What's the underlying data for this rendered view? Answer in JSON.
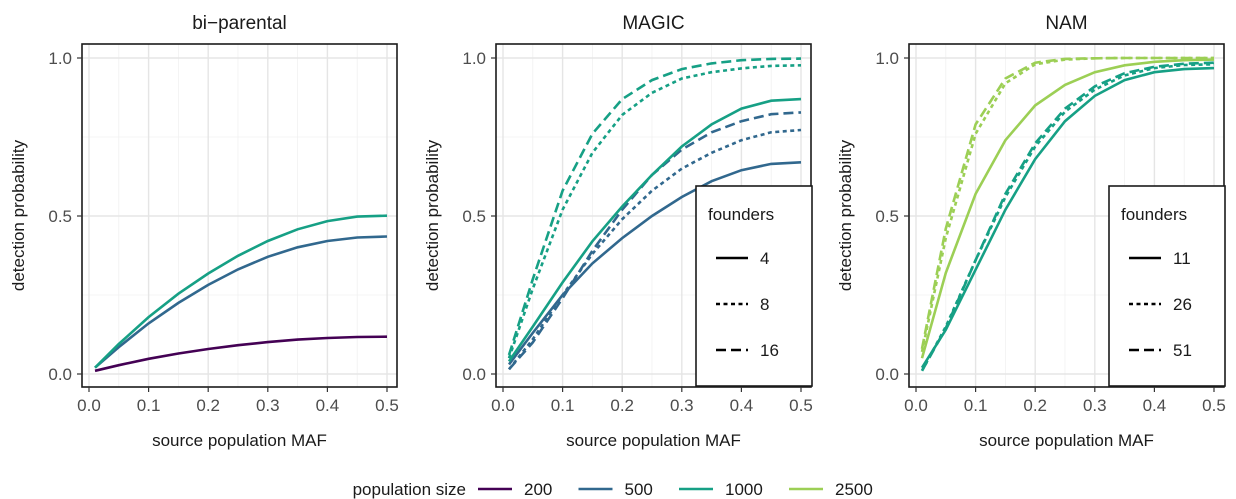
{
  "chart_data": [
    {
      "type": "line",
      "title": "bi−parental",
      "xlabel": "source population MAF",
      "ylabel": "detection probability",
      "xlim": [
        0.0,
        0.5
      ],
      "ylim": [
        0.0,
        1.0
      ],
      "xticks": [
        "0.0",
        "0.1",
        "0.2",
        "0.3",
        "0.4",
        "0.5"
      ],
      "yticks": [
        "0.0",
        "0.5",
        "1.0"
      ],
      "grid": true,
      "x": [
        0.01,
        0.05,
        0.1,
        0.15,
        0.2,
        0.25,
        0.3,
        0.35,
        0.4,
        0.45,
        0.5
      ],
      "series": [
        {
          "size": "200",
          "founders": "",
          "dash": "solid",
          "color": "#440154",
          "values": [
            0.01,
            0.028,
            0.048,
            0.065,
            0.079,
            0.091,
            0.101,
            0.109,
            0.114,
            0.117,
            0.118
          ]
        },
        {
          "size": "500",
          "founders": "",
          "dash": "solid",
          "color": "#31688e",
          "values": [
            0.02,
            0.085,
            0.16,
            0.225,
            0.282,
            0.331,
            0.371,
            0.401,
            0.421,
            0.432,
            0.435
          ]
        },
        {
          "size": "1000",
          "founders": "",
          "dash": "solid",
          "color": "#16a085",
          "values": [
            0.02,
            0.095,
            0.18,
            0.254,
            0.318,
            0.374,
            0.421,
            0.458,
            0.484,
            0.498,
            0.501
          ]
        }
      ]
    },
    {
      "type": "line",
      "title": "MAGIC",
      "xlabel": "source population MAF",
      "ylabel": "detection probability",
      "xlim": [
        0.0,
        0.5
      ],
      "ylim": [
        0.0,
        1.0
      ],
      "xticks": [
        "0.0",
        "0.1",
        "0.2",
        "0.3",
        "0.4",
        "0.5"
      ],
      "yticks": [
        "0.0",
        "0.5",
        "1.0"
      ],
      "grid": true,
      "legend": {
        "title": "founders",
        "position": "bottom-right",
        "entries": [
          {
            "label": "4",
            "dash": "solid"
          },
          {
            "label": "8",
            "dash": "dotted"
          },
          {
            "label": "16",
            "dash": "dashed"
          }
        ]
      },
      "x": [
        0.01,
        0.05,
        0.1,
        0.15,
        0.2,
        0.25,
        0.3,
        0.35,
        0.4,
        0.45,
        0.5
      ],
      "series": [
        {
          "size": "500",
          "founders": "4",
          "dash": "solid",
          "color": "#31688e",
          "values": [
            0.03,
            0.13,
            0.25,
            0.35,
            0.43,
            0.5,
            0.56,
            0.61,
            0.645,
            0.665,
            0.67
          ]
        },
        {
          "size": "500",
          "founders": "8",
          "dash": "dotted",
          "color": "#31688e",
          "values": [
            0.015,
            0.11,
            0.25,
            0.38,
            0.49,
            0.58,
            0.65,
            0.7,
            0.74,
            0.765,
            0.772
          ]
        },
        {
          "size": "500",
          "founders": "16",
          "dash": "dashed",
          "color": "#31688e",
          "values": [
            0.015,
            0.1,
            0.24,
            0.39,
            0.52,
            0.63,
            0.71,
            0.765,
            0.8,
            0.822,
            0.828
          ]
        },
        {
          "size": "1000",
          "founders": "4",
          "dash": "solid",
          "color": "#16a085",
          "values": [
            0.04,
            0.15,
            0.29,
            0.42,
            0.53,
            0.63,
            0.72,
            0.79,
            0.84,
            0.865,
            0.87
          ]
        },
        {
          "size": "1000",
          "founders": "8",
          "dash": "dotted",
          "color": "#16a085",
          "values": [
            0.05,
            0.27,
            0.52,
            0.7,
            0.82,
            0.89,
            0.935,
            0.955,
            0.967,
            0.975,
            0.977
          ]
        },
        {
          "size": "1000",
          "founders": "16",
          "dash": "dashed",
          "color": "#16a085",
          "values": [
            0.06,
            0.3,
            0.58,
            0.76,
            0.87,
            0.93,
            0.965,
            0.983,
            0.993,
            0.997,
            0.998
          ]
        }
      ]
    },
    {
      "type": "line",
      "title": "NAM",
      "xlabel": "source population MAF",
      "ylabel": "detection probability",
      "xlim": [
        0.0,
        0.5
      ],
      "ylim": [
        0.0,
        1.0
      ],
      "xticks": [
        "0.0",
        "0.1",
        "0.2",
        "0.3",
        "0.4",
        "0.5"
      ],
      "yticks": [
        "0.0",
        "0.5",
        "1.0"
      ],
      "grid": true,
      "legend": {
        "title": "founders",
        "position": "bottom-right",
        "entries": [
          {
            "label": "11",
            "dash": "solid"
          },
          {
            "label": "26",
            "dash": "dotted"
          },
          {
            "label": "51",
            "dash": "dashed"
          }
        ]
      },
      "x": [
        0.01,
        0.05,
        0.1,
        0.15,
        0.2,
        0.25,
        0.3,
        0.35,
        0.4,
        0.45,
        0.5
      ],
      "series": [
        {
          "size": "1000",
          "founders": "11",
          "dash": "solid",
          "color": "#16a085",
          "values": [
            0.02,
            0.14,
            0.33,
            0.52,
            0.68,
            0.8,
            0.88,
            0.93,
            0.955,
            0.965,
            0.968
          ]
        },
        {
          "size": "1000",
          "founders": "26",
          "dash": "dotted",
          "color": "#16a085",
          "values": [
            0.01,
            0.15,
            0.36,
            0.56,
            0.72,
            0.83,
            0.9,
            0.945,
            0.968,
            0.978,
            0.98
          ]
        },
        {
          "size": "1000",
          "founders": "51",
          "dash": "dashed",
          "color": "#16a085",
          "values": [
            0.01,
            0.145,
            0.36,
            0.57,
            0.73,
            0.84,
            0.91,
            0.952,
            0.972,
            0.982,
            0.985
          ]
        },
        {
          "size": "2500",
          "founders": "11",
          "dash": "solid",
          "color": "#9ccf55",
          "values": [
            0.05,
            0.32,
            0.57,
            0.74,
            0.85,
            0.915,
            0.955,
            0.977,
            0.988,
            0.993,
            0.995
          ]
        },
        {
          "size": "2500",
          "founders": "26",
          "dash": "dotted",
          "color": "#9ccf55",
          "values": [
            0.07,
            0.43,
            0.76,
            0.92,
            0.98,
            0.995,
            0.999,
            1.0,
            1.0,
            1.0,
            1.0
          ]
        },
        {
          "size": "2500",
          "founders": "51",
          "dash": "dashed",
          "color": "#9ccf55",
          "values": [
            0.08,
            0.46,
            0.79,
            0.935,
            0.985,
            0.997,
            0.999,
            1.0,
            1.0,
            1.0,
            1.0
          ]
        }
      ]
    }
  ],
  "legend": {
    "title": "population size",
    "items": [
      {
        "label": "200",
        "color": "#440154"
      },
      {
        "label": "500",
        "color": "#31688e"
      },
      {
        "label": "1000",
        "color": "#16a085"
      },
      {
        "label": "2500",
        "color": "#9ccf55"
      }
    ]
  }
}
